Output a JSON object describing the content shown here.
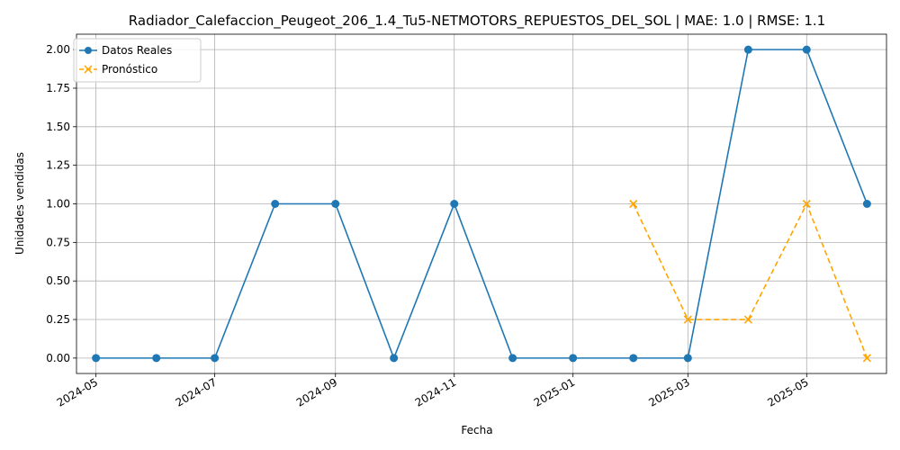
{
  "chart_data": {
    "type": "line",
    "title": "Radiador_Calefaccion_Peugeot_206_1.4_Tu5-NETMOTORS_REPUESTOS_DEL_SOL | MAE: 1.0 | RMSE: 1.1",
    "xlabel": "Fecha",
    "ylabel": "Unidades vendidas",
    "ylim": [
      -0.1,
      2.1
    ],
    "xlim": [
      "2024-04-21",
      "2025-06-11"
    ],
    "x_ticks": [
      "2024-05",
      "2024-07",
      "2024-09",
      "2024-11",
      "2025-01",
      "2025-03",
      "2025-05"
    ],
    "y_ticks": [
      0.0,
      0.25,
      0.5,
      0.75,
      1.0,
      1.25,
      1.5,
      1.75,
      2.0
    ],
    "y_tick_labels": [
      "0.00",
      "0.25",
      "0.50",
      "0.75",
      "1.00",
      "1.25",
      "1.50",
      "1.75",
      "2.00"
    ],
    "grid": true,
    "legend_position": "top-left",
    "series": [
      {
        "name": "Datos Reales",
        "color": "#1f77b4",
        "line_style": "solid",
        "marker": "circle",
        "x": [
          "2024-05-01",
          "2024-06-01",
          "2024-07-01",
          "2024-08-01",
          "2024-09-01",
          "2024-10-01",
          "2024-11-01",
          "2024-12-01",
          "2025-01-01",
          "2025-02-01",
          "2025-03-01",
          "2025-04-01",
          "2025-05-01",
          "2025-06-01"
        ],
        "values": [
          0,
          0,
          0,
          1,
          1,
          0,
          1,
          0,
          0,
          0,
          0,
          2,
          2,
          1
        ]
      },
      {
        "name": "Pronóstico",
        "color": "#ffa500",
        "line_style": "dashed",
        "marker": "x",
        "x": [
          "2025-02-01",
          "2025-03-01",
          "2025-04-01",
          "2025-05-01",
          "2025-06-01"
        ],
        "values": [
          1.0,
          0.25,
          0.25,
          1.0,
          0.0
        ]
      }
    ]
  }
}
